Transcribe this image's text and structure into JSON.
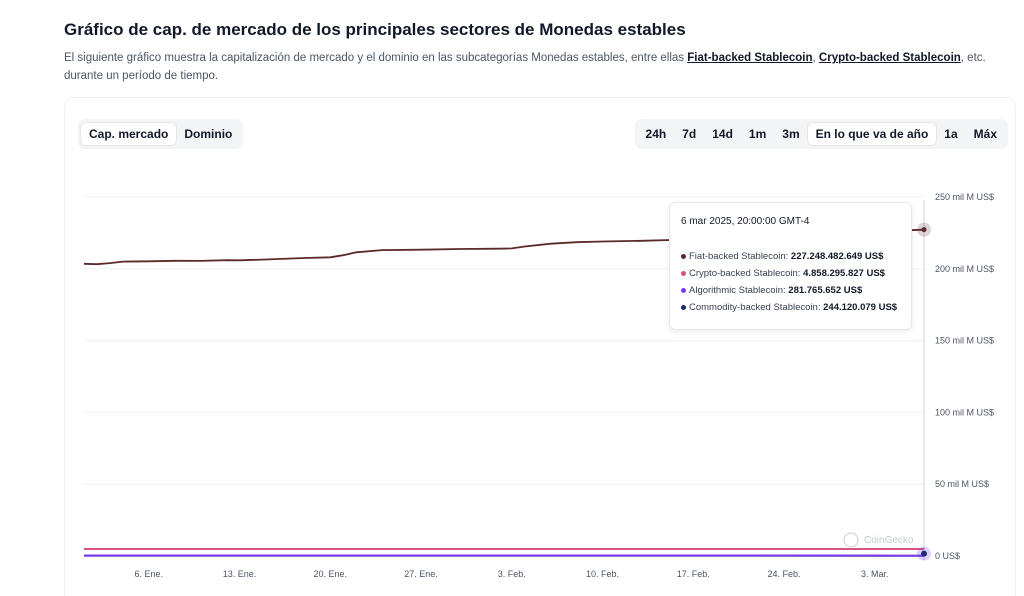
{
  "header": {
    "title": "Gráfico de cap. de mercado de los principales sectores de Monedas estables",
    "desc_prefix": "El siguiente gráfico muestra la capitalización de mercado y el dominio en las subcategorías Monedas estables, entre ellas ",
    "link1": "Fiat-backed Stablecoin",
    "desc_sep": ", ",
    "link2": "Crypto-backed Stablecoin",
    "desc_suffix": ", etc. durante un período de tiempo."
  },
  "tabs": [
    {
      "label": "Cap. mercado",
      "active": true
    },
    {
      "label": "Dominio",
      "active": false
    }
  ],
  "ranges": [
    {
      "label": "24h",
      "active": false
    },
    {
      "label": "7d",
      "active": false
    },
    {
      "label": "14d",
      "active": false
    },
    {
      "label": "1m",
      "active": false
    },
    {
      "label": "3m",
      "active": false
    },
    {
      "label": "En lo que va de año",
      "active": true
    },
    {
      "label": "1a",
      "active": false
    },
    {
      "label": "Máx",
      "active": false
    }
  ],
  "tooltip": {
    "date": "6 mar 2025, 20:00:00 GMT-4",
    "rows": [
      {
        "name": "Fiat-backed Stablecoin",
        "value": "227.248.482.649 US$",
        "color": "#5b2a2a"
      },
      {
        "name": "Crypto-backed Stablecoin",
        "value": "4.858.295.827 US$",
        "color": "#d9537f"
      },
      {
        "name": "Algorithmic Stablecoin",
        "value": "281.765.652 US$",
        "color": "#7c3aed"
      },
      {
        "name": "Commodity-backed Stablecoin",
        "value": "244.120.079 US$",
        "color": "#1e2a78"
      }
    ]
  },
  "watermark": "CoinGecko",
  "chart_data": {
    "type": "line",
    "title": "",
    "xlabel": "",
    "ylabel": "",
    "y_tick_labels": [
      "0 US$",
      "50 mil M US$",
      "100 mil M US$",
      "150 mil M US$",
      "200 mil M US$",
      "250 mil M US$"
    ],
    "y_tick_values": [
      0,
      50,
      100,
      150,
      200,
      250
    ],
    "y_unit_note": "mil M US$",
    "ylim": [
      0,
      250
    ],
    "x_tick_labels": [
      "6. Ene.",
      "13. Ene.",
      "20. Ene.",
      "27. Ene.",
      "3. Feb.",
      "10. Feb.",
      "17. Feb.",
      "24. Feb.",
      "3. Mar."
    ],
    "x_tick_days": [
      6,
      13,
      20,
      27,
      34,
      41,
      48,
      55,
      62
    ],
    "x_domain_days": [
      1,
      65.8
    ],
    "grid": true,
    "legend": "tooltip",
    "series": [
      {
        "name": "Fiat-backed Stablecoin",
        "color": "#5b2a2a",
        "days": [
          1,
          2,
          3,
          4,
          6,
          8,
          10,
          12,
          13,
          15,
          17,
          18,
          20,
          21,
          22,
          24,
          27,
          30,
          33,
          34,
          35,
          37,
          39,
          41,
          44,
          48,
          52,
          55,
          58,
          61,
          63,
          65.8
        ],
        "values": [
          203.5,
          203.2,
          204.0,
          205.0,
          205.2,
          205.6,
          205.5,
          206.0,
          205.9,
          206.5,
          207.2,
          207.5,
          208.0,
          209.5,
          211.5,
          213.0,
          213.3,
          213.8,
          214.0,
          214.2,
          215.5,
          217.5,
          218.5,
          219.0,
          219.5,
          220.5,
          221.5,
          222.8,
          224.0,
          225.5,
          226.3,
          227.25
        ]
      },
      {
        "name": "Crypto-backed Stablecoin",
        "color": "#d9537f",
        "days": [
          1,
          65.8
        ],
        "values": [
          4.9,
          4.86
        ]
      },
      {
        "name": "Algorithmic Stablecoin",
        "color": "#7c3aed",
        "days": [
          1,
          65.8
        ],
        "values": [
          0.3,
          0.28
        ]
      },
      {
        "name": "Commodity-backed Stablecoin",
        "color": "#1e2a78",
        "days": [
          1,
          65.8
        ],
        "values": [
          0.25,
          0.24
        ]
      }
    ]
  }
}
